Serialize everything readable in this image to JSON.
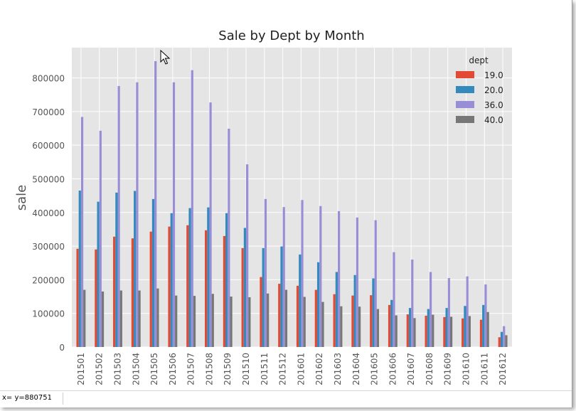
{
  "status": {
    "coords": "x= y=880751"
  },
  "chart_data": {
    "type": "bar",
    "title": "Sale by Dept by Month",
    "xlabel": "",
    "ylabel": "sale",
    "ylim": [
      0,
      890000
    ],
    "yticks": [
      0,
      100000,
      200000,
      300000,
      400000,
      500000,
      600000,
      700000,
      800000
    ],
    "grid": true,
    "legend_title": "dept",
    "legend_position": "top-right",
    "categories": [
      "201501",
      "201502",
      "201503",
      "201504",
      "201505",
      "201506",
      "201507",
      "201508",
      "201509",
      "201510",
      "201511",
      "201512",
      "201601",
      "201602",
      "201603",
      "201604",
      "201605",
      "201606",
      "201607",
      "201608",
      "201609",
      "201610",
      "201611",
      "201612"
    ],
    "series": [
      {
        "name": "19.0",
        "color": "#e24a33",
        "values": [
          292000,
          290000,
          328000,
          323000,
          343000,
          358000,
          362000,
          347000,
          330000,
          294000,
          208000,
          188000,
          182000,
          170000,
          157000,
          153000,
          154000,
          125000,
          97000,
          93000,
          89000,
          85000,
          81000,
          29000
        ]
      },
      {
        "name": "20.0",
        "color": "#348abd",
        "values": [
          465000,
          432000,
          459000,
          464000,
          440000,
          398000,
          413000,
          415000,
          398000,
          354000,
          294000,
          299000,
          275000,
          252000,
          223000,
          214000,
          204000,
          140000,
          116000,
          113000,
          116000,
          122000,
          125000,
          45000
        ]
      },
      {
        "name": "36.0",
        "color": "#988ed5",
        "values": [
          684000,
          643000,
          776000,
          787000,
          850000,
          787000,
          823000,
          727000,
          649000,
          543000,
          440000,
          416000,
          437000,
          419000,
          404000,
          385000,
          377000,
          282000,
          260000,
          223000,
          205000,
          210000,
          186000,
          62000
        ]
      },
      {
        "name": "40.0",
        "color": "#777777",
        "values": [
          170000,
          165000,
          168000,
          168000,
          174000,
          153000,
          152000,
          158000,
          150000,
          148000,
          159000,
          170000,
          149000,
          134000,
          121000,
          120000,
          113000,
          94000,
          86000,
          96000,
          90000,
          92000,
          104000,
          35000
        ]
      }
    ]
  }
}
